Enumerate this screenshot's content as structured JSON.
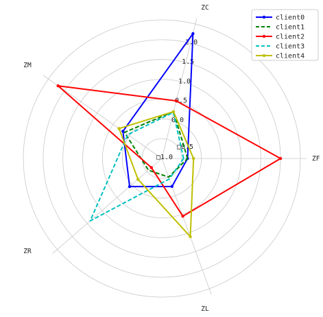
{
  "chart_data": {
    "type": "radar",
    "categories": [
      "ZF",
      "ZC",
      "ZM",
      "ZR",
      "ZL"
    ],
    "radial_ticks": [
      "□1.0",
      "□0.5",
      "0.0",
      "0.5",
      "1.0",
      "1.5",
      "2.0"
    ],
    "r_range": [
      -1.0,
      2.5
    ],
    "grid": true,
    "legend_position": "top-right",
    "series": [
      {
        "name": "client0",
        "color": "#0000ff",
        "style": "solid",
        "marker": true,
        "values": [
          -0.35,
          2.25,
          0.2,
          0.08,
          -0.25
        ]
      },
      {
        "name": "client1",
        "color": "#008000",
        "style": "dashed",
        "marker": false,
        "values": [
          -0.35,
          0.22,
          0.15,
          -0.55,
          -0.5
        ]
      },
      {
        "name": "client2",
        "color": "#ff0000",
        "style": "solid",
        "marker": true,
        "values": [
          2.0,
          0.5,
          2.2,
          -0.65,
          0.55
        ]
      },
      {
        "name": "client3",
        "color": "#00bfbf",
        "style": "dashed",
        "marker": false,
        "values": [
          -0.45,
          0.2,
          0.05,
          1.4,
          -0.45
        ]
      },
      {
        "name": "client4",
        "color": "#bfbf00",
        "style": "solid",
        "marker": true,
        "values": [
          -0.2,
          0.22,
          0.32,
          -0.2,
          1.1
        ]
      }
    ]
  }
}
